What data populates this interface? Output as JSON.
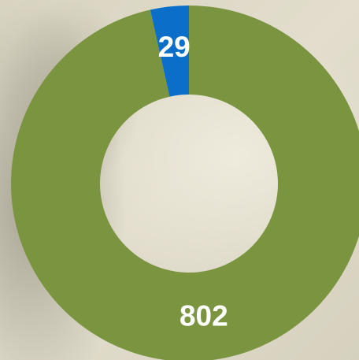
{
  "chart_data": {
    "type": "donut",
    "values": [
      802,
      29
    ],
    "colors": [
      "#7a9440",
      "#0b6fca"
    ]
  }
}
